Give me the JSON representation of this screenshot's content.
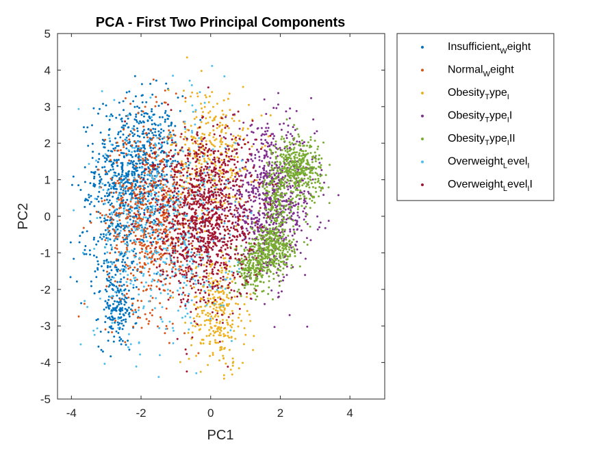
{
  "chart_data": {
    "type": "scatter",
    "title": "PCA - First Two Principal Components",
    "xlabel": "PC1",
    "ylabel": "PC2",
    "xlim": [
      -4.4,
      5
    ],
    "ylim": [
      -5,
      5
    ],
    "xticks": [
      "-4",
      "-2",
      "0",
      "2",
      "4"
    ],
    "yticks": [
      "5",
      "4",
      "3",
      "2",
      "1",
      "0",
      "-1",
      "-2",
      "-3",
      "-4",
      "-5"
    ],
    "grid": false,
    "legend_position": "outside-top-right",
    "series": [
      {
        "name": "Insufficient_Weight",
        "legend_main": "Insufficient",
        "legend_sub": "W",
        "legend_rest": "eight",
        "color": "#0072BD",
        "clusters": [
          {
            "cx": -2.1,
            "cy": 1.3,
            "sx": 0.6,
            "sy": 1.0,
            "n": 700
          },
          {
            "cx": -2.7,
            "cy": -2.6,
            "sx": 0.25,
            "sy": 0.5,
            "n": 140
          },
          {
            "cx": -2.8,
            "cy": -0.5,
            "sx": 0.5,
            "sy": 1.2,
            "n": 250
          }
        ]
      },
      {
        "name": "Normal_Weight",
        "legend_main": "Normal",
        "legend_sub": "W",
        "legend_rest": "eight",
        "color": "#D95319",
        "clusters": [
          {
            "cx": -1.7,
            "cy": 0.0,
            "sx": 0.65,
            "sy": 1.3,
            "n": 700
          }
        ]
      },
      {
        "name": "Obesity_Type_I",
        "legend_main": "Obesity",
        "legend_sub": "T",
        "legend_rest": "ype",
        "legend_sub2": "I",
        "legend_rest2": "",
        "color": "#EDB120",
        "clusters": [
          {
            "cx": 0.0,
            "cy": 1.6,
            "sx": 0.6,
            "sy": 1.0,
            "n": 350
          },
          {
            "cx": 0.2,
            "cy": -2.6,
            "sx": 0.4,
            "sy": 0.8,
            "n": 300
          }
        ]
      },
      {
        "name": "Obesity_Type_II",
        "legend_main": "Obesity",
        "legend_sub": "T",
        "legend_rest": "ype",
        "legend_sub2": "I",
        "legend_rest2": "I",
        "color": "#7E2F8E",
        "clusters": [
          {
            "cx": 1.7,
            "cy": 0.4,
            "sx": 0.65,
            "sy": 1.0,
            "n": 800
          }
        ]
      },
      {
        "name": "Obesity_Type_III",
        "legend_main": "Obesity",
        "legend_sub": "T",
        "legend_rest": "ype",
        "legend_sub2": "I",
        "legend_rest2": "II",
        "color": "#77AC30",
        "clusters": [
          {
            "cx": 2.5,
            "cy": 1.3,
            "sx": 0.35,
            "sy": 0.45,
            "n": 400
          },
          {
            "cx": 1.9,
            "cy": 0.4,
            "sx": 0.2,
            "sy": 0.5,
            "n": 150
          },
          {
            "cx": 1.8,
            "cy": -0.9,
            "sx": 0.3,
            "sy": 0.35,
            "n": 300
          },
          {
            "cx": 1.2,
            "cy": -1.4,
            "sx": 0.25,
            "sy": 0.35,
            "n": 200
          }
        ]
      },
      {
        "name": "Overweight_Level_I",
        "legend_main": "Overweight",
        "legend_sub": "L",
        "legend_rest": "evel",
        "legend_sub2": "I",
        "legend_rest2": "",
        "color": "#4DBEEE",
        "clusters": [
          {
            "cx": -1.3,
            "cy": -0.3,
            "sx": 1.0,
            "sy": 1.6,
            "n": 550
          }
        ]
      },
      {
        "name": "Overweight_Level_II",
        "legend_main": "Overweight",
        "legend_sub": "L",
        "legend_rest": "evel",
        "legend_sub2": "I",
        "legend_rest2": "I",
        "color": "#A2142F",
        "clusters": [
          {
            "cx": -0.2,
            "cy": 0.0,
            "sx": 0.7,
            "sy": 1.2,
            "n": 1100
          }
        ]
      }
    ]
  }
}
